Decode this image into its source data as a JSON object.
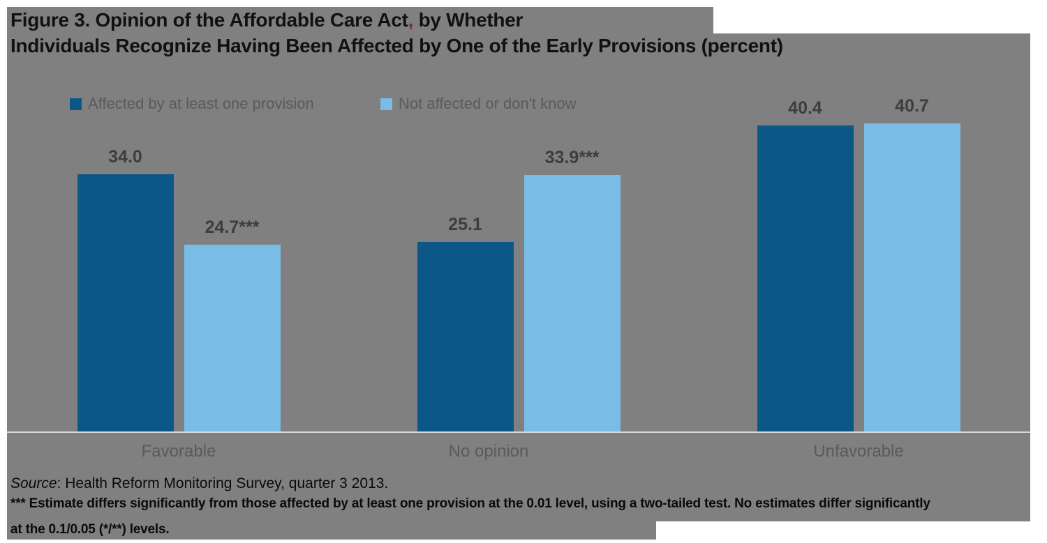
{
  "figure": {
    "title_line1_part1": "Figure 3. Opinion of the Affordable Care Act",
    "title_comma": ",",
    "title_line1_part2": " by Whether",
    "title_line2": "Individuals Recognize Having Been Affected by One of the Early Provisions (percent)"
  },
  "legend": {
    "items": [
      {
        "label": "Affected by at least one provision",
        "color": "#0a5788"
      },
      {
        "label": "Not affected or don't know",
        "color": "#79bce6"
      }
    ]
  },
  "chart_data": {
    "type": "bar",
    "title": "Figure 3. Opinion of the Affordable Care Act, by Whether Individuals Recognize Having Been Affected by One of the Early Provisions (percent)",
    "categories": [
      "Favorable",
      "No opinion",
      "Unfavorable"
    ],
    "series": [
      {
        "name": "Affected by at least one provision",
        "color": "#0a5788",
        "values": [
          34.0,
          25.1,
          40.4
        ],
        "labels": [
          "34.0",
          "25.1",
          "40.4"
        ]
      },
      {
        "name": "Not affected or don't know",
        "color": "#79bce6",
        "values": [
          24.7,
          33.9,
          40.7
        ],
        "labels": [
          "24.7***",
          "33.9***",
          "40.7"
        ]
      }
    ],
    "unit": "percent",
    "ylim": [
      0,
      45
    ],
    "grid": false,
    "axis_labels_shown": false,
    "legend_position": "top-left"
  },
  "footer": {
    "source_prefix": "Source",
    "source_rest": ": Health Reform Monitoring Survey, quarter 3 2013.",
    "note_line1": "*** Estimate differs significantly from those affected by at least one provision at the 0.01 level, using a two-tailed test. No estimates differ significantly",
    "note_line2": "at the 0.1/0.05 (*/**) levels."
  },
  "colors": {
    "page_background": "#ffffff",
    "figure_background": "#808080",
    "dark_blue": "#0a5788",
    "light_blue": "#79bce6",
    "title_text": "#111111",
    "accent_comma": "#7f2b28",
    "muted_text": "#5a5a5a",
    "value_text": "#3d3d3d",
    "axis_line": "#d9d9d9"
  }
}
